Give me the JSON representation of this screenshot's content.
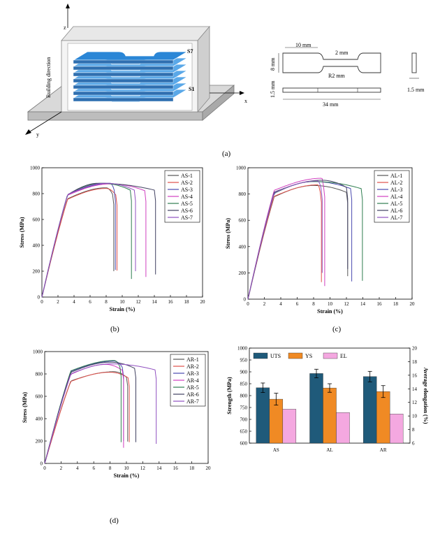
{
  "figure": {
    "panel_labels": {
      "a": "(a)",
      "b": "(b)",
      "c": "(c)",
      "d": "(d)"
    },
    "schematic": {
      "axis_x": "x",
      "axis_y": "y",
      "axis_z": "z",
      "building_direction": "Building direction",
      "top_label": "S7",
      "bottom_label": "S1",
      "dims": {
        "grip_length": "10 mm",
        "gauge_width": "2 mm",
        "width": "8 mm",
        "radius": "R2 mm",
        "thickness_left": "1.5 mm",
        "total_length": "34 mm",
        "thickness_right": "1.5 mm"
      }
    }
  },
  "chart_data": [
    {
      "id": "b",
      "type": "line",
      "xlabel": "Strain (%)",
      "ylabel": "Stress (MPa)",
      "xlim": [
        0,
        20
      ],
      "ylim": [
        0,
        1000
      ],
      "xticks": [
        0,
        2,
        4,
        6,
        8,
        10,
        12,
        14,
        16,
        18,
        20
      ],
      "yticks": [
        0,
        200,
        400,
        600,
        800,
        1000
      ],
      "legend_position": "top-right",
      "series": [
        {
          "name": "AS-1",
          "color": "#555555",
          "uts": 845,
          "uts_strain": 8.0,
          "break_strain": 8.8,
          "drop_to": 200
        },
        {
          "name": "AS-2",
          "color": "#e0504a",
          "uts": 840,
          "uts_strain": 8.0,
          "break_strain": 9.2,
          "drop_to": 205
        },
        {
          "name": "AS-3",
          "color": "#4a4ab0",
          "uts": 880,
          "uts_strain": 8.5,
          "break_strain": 9.0,
          "drop_to": 210
        },
        {
          "name": "AS-4",
          "color": "#d040c0",
          "uts": 875,
          "uts_strain": 8.5,
          "break_strain": 12.8,
          "drop_to": 155
        },
        {
          "name": "AS-5",
          "color": "#2e7d4f",
          "uts": 880,
          "uts_strain": 7.5,
          "break_strain": 11.0,
          "drop_to": 140
        },
        {
          "name": "AS-6",
          "color": "#404060",
          "uts": 880,
          "uts_strain": 7.0,
          "break_strain": 14.0,
          "drop_to": 175
        },
        {
          "name": "AS-7",
          "color": "#9050c0",
          "uts": 880,
          "uts_strain": 8.0,
          "break_strain": 11.5,
          "drop_to": 200
        }
      ]
    },
    {
      "id": "c",
      "type": "line",
      "xlabel": "Strain (%)",
      "ylabel": "Stress (MPa)",
      "xlim": [
        0,
        20
      ],
      "ylim": [
        0,
        1000
      ],
      "xticks": [
        0,
        2,
        4,
        6,
        8,
        10,
        12,
        14,
        16,
        18,
        20
      ],
      "yticks": [
        0,
        200,
        400,
        600,
        800,
        1000
      ],
      "legend_position": "top-right",
      "series": [
        {
          "name": "AL-1",
          "color": "#555555",
          "uts": 865,
          "uts_strain": 8.0,
          "break_strain": 12.0,
          "drop_to": 175
        },
        {
          "name": "AL-2",
          "color": "#e0504a",
          "uts": 870,
          "uts_strain": 8.5,
          "break_strain": 8.8,
          "drop_to": 130
        },
        {
          "name": "AL-3",
          "color": "#4a4ab0",
          "uts": 895,
          "uts_strain": 8.0,
          "break_strain": 12.5,
          "drop_to": 135
        },
        {
          "name": "AL-4",
          "color": "#d040c0",
          "uts": 920,
          "uts_strain": 9.0,
          "break_strain": 9.2,
          "drop_to": 100
        },
        {
          "name": "AL-5",
          "color": "#2e7d4f",
          "uts": 895,
          "uts_strain": 8.0,
          "break_strain": 13.8,
          "drop_to": 140
        },
        {
          "name": "AL-6",
          "color": "#404060",
          "uts": 905,
          "uts_strain": 9.0,
          "break_strain": 12.0,
          "drop_to": 230
        },
        {
          "name": "AL-7",
          "color": "#9050c0",
          "uts": 900,
          "uts_strain": 8.5,
          "break_strain": 8.9,
          "drop_to": 200
        }
      ]
    },
    {
      "id": "d",
      "type": "line",
      "xlabel": "Strain (%)",
      "ylabel": "Stress (MPa)",
      "xlim": [
        0,
        20
      ],
      "ylim": [
        0,
        1000
      ],
      "xticks": [
        0,
        2,
        4,
        6,
        8,
        10,
        12,
        14,
        16,
        18,
        20
      ],
      "yticks": [
        0,
        200,
        400,
        600,
        800,
        1000
      ],
      "legend_position": "top-right",
      "series": [
        {
          "name": "AR-1",
          "color": "#555555",
          "uts": 820,
          "uts_strain": 8.5,
          "break_strain": 10.0,
          "drop_to": 195
        },
        {
          "name": "AR-2",
          "color": "#e0504a",
          "uts": 815,
          "uts_strain": 8.0,
          "break_strain": 10.2,
          "drop_to": 190
        },
        {
          "name": "AR-3",
          "color": "#4a4ab0",
          "uts": 915,
          "uts_strain": 8.5,
          "break_strain": 9.5,
          "drop_to": 200
        },
        {
          "name": "AR-4",
          "color": "#d040c0",
          "uts": 885,
          "uts_strain": 7.5,
          "break_strain": 9.5,
          "drop_to": 140
        },
        {
          "name": "AR-5",
          "color": "#2e7d4f",
          "uts": 920,
          "uts_strain": 8.5,
          "break_strain": 9.2,
          "drop_to": 190
        },
        {
          "name": "AR-6",
          "color": "#404060",
          "uts": 905,
          "uts_strain": 8.0,
          "break_strain": 11.0,
          "drop_to": 190
        },
        {
          "name": "AR-7",
          "color": "#9050c0",
          "uts": 890,
          "uts_strain": 8.0,
          "break_strain": 13.5,
          "drop_to": 175
        }
      ]
    },
    {
      "id": "e",
      "type": "bar",
      "categories": [
        "AS",
        "AL",
        "AR"
      ],
      "ylabel_left": "Strength (MPa)",
      "ylabel_right": "Average elongation (%)",
      "ylim_left": [
        600,
        1000
      ],
      "ylim_right": [
        6,
        20
      ],
      "yticks_left": [
        600,
        650,
        700,
        750,
        800,
        850,
        900,
        950,
        1000
      ],
      "yticks_right": [
        6,
        8,
        10,
        12,
        14,
        16,
        18,
        20
      ],
      "legend_position": "top",
      "series": [
        {
          "name": "UTS",
          "color": "#1f5a7a",
          "axis": "left",
          "values": [
            833,
            893,
            880
          ],
          "errors": [
            20,
            18,
            22
          ]
        },
        {
          "name": "YS",
          "color": "#f08a24",
          "axis": "left",
          "values": [
            785,
            832,
            817
          ],
          "errors": [
            25,
            18,
            25
          ]
        },
        {
          "name": "EL",
          "color": "#f4a8e0",
          "axis": "right",
          "values": [
            11.0,
            10.5,
            10.3
          ],
          "errors": [
            0,
            0,
            0
          ]
        }
      ]
    }
  ]
}
